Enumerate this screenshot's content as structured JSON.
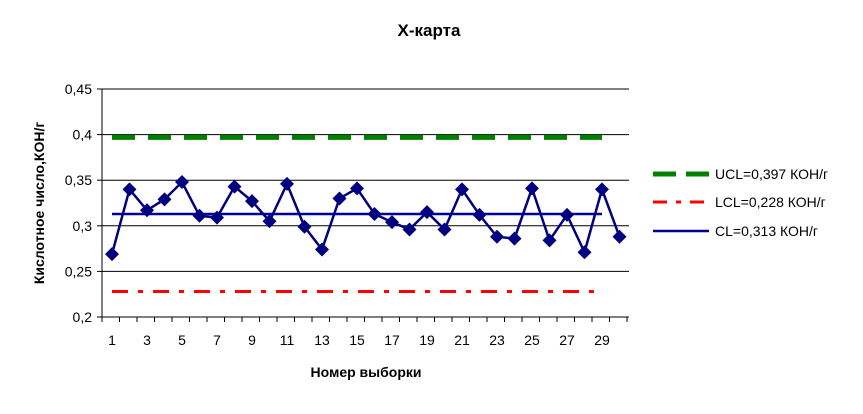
{
  "chart_data": {
    "type": "line",
    "title": "X-карта",
    "xlabel": "Номер выборки",
    "ylabel": "Кислотное число,КОН/г",
    "ylim": [
      0.2,
      0.45
    ],
    "yticks": [
      "0,2",
      "0,25",
      "0,3",
      "0,35",
      "0,4",
      "0,45"
    ],
    "yticks_values": [
      0.2,
      0.25,
      0.3,
      0.35,
      0.4,
      0.45
    ],
    "xticks": [
      "1",
      "3",
      "5",
      "7",
      "9",
      "11",
      "13",
      "15",
      "17",
      "19",
      "21",
      "23",
      "25",
      "27",
      "29"
    ],
    "x": [
      1,
      2,
      3,
      4,
      5,
      6,
      7,
      8,
      9,
      10,
      11,
      12,
      13,
      14,
      15,
      16,
      17,
      18,
      19,
      20,
      21,
      22,
      23,
      24,
      25,
      26,
      27,
      28,
      29,
      30
    ],
    "grid": "horizontal",
    "legend_position": "right",
    "series": [
      {
        "name": "",
        "color": "#000080",
        "marker": "diamond",
        "values": [
          0.269,
          0.34,
          0.317,
          0.329,
          0.348,
          0.311,
          0.309,
          0.343,
          0.327,
          0.305,
          0.346,
          0.299,
          0.274,
          0.33,
          0.341,
          0.313,
          0.304,
          0.296,
          0.315,
          0.296,
          0.34,
          0.312,
          0.288,
          0.286,
          0.341,
          0.284,
          0.312,
          0.271,
          0.34,
          0.288
        ]
      },
      {
        "name": "UCL=0,397 КОН/г",
        "color": "#008000",
        "style": "dashed",
        "value": 0.397,
        "x_range": [
          1,
          29
        ]
      },
      {
        "name": "LCL=0,228 КОН/г",
        "color": "#ff0000",
        "style": "dash-dot",
        "value": 0.228,
        "x_range": [
          1,
          29
        ]
      },
      {
        "name": "CL=0,313 КОН/г",
        "color": "#000099",
        "style": "solid",
        "value": 0.313,
        "x_range": [
          1,
          29
        ]
      }
    ]
  }
}
